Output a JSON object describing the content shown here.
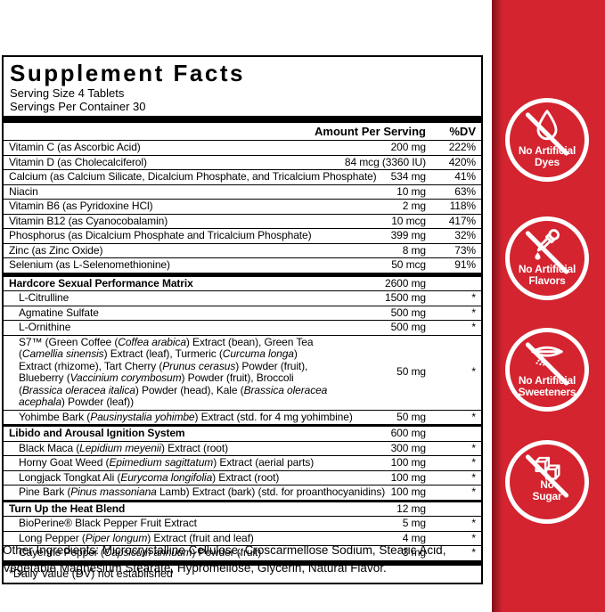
{
  "colors": {
    "band_red": "#d32430",
    "band_red_edge": "#7e161c",
    "ink": "#000000",
    "badge_white": "#ffffff"
  },
  "label": {
    "title": "Supplement Facts",
    "serving_size": "Serving Size 4 Tablets",
    "servings_per_container": "Servings Per Container 30",
    "columns": {
      "amount": "Amount Per Serving",
      "dv": "%DV"
    },
    "rows": [
      {
        "name": [
          {
            "t": "Vitamin C (as Ascorbic Acid)"
          }
        ],
        "amount": "200 mg",
        "dv": "222%"
      },
      {
        "name": [
          {
            "t": "Vitamin D (as Cholecalciferol)"
          }
        ],
        "amount": "84 mcg (3360 IU)",
        "dv": "420%"
      },
      {
        "name": [
          {
            "t": "Calcium (as Calcium Silicate, Dicalcium Phosphate, and Tricalcium Phosphate)"
          }
        ],
        "amount": "534 mg",
        "dv": "41%"
      },
      {
        "name": [
          {
            "t": "Niacin"
          }
        ],
        "amount": "10 mg",
        "dv": "63%"
      },
      {
        "name": [
          {
            "t": "Vitamin B6 (as Pyridoxine HCl)"
          }
        ],
        "amount": "2 mg",
        "dv": "118%"
      },
      {
        "name": [
          {
            "t": "Vitamin B12 (as Cyanocobalamin)"
          }
        ],
        "amount": "10 mcg",
        "dv": "417%"
      },
      {
        "name": [
          {
            "t": "Phosphorus (as Dicalcium Phosphate and Tricalcium Phosphate)"
          }
        ],
        "amount": "399 mg",
        "dv": "32%"
      },
      {
        "name": [
          {
            "t": "Zinc (as Zinc Oxide)"
          }
        ],
        "amount": "8 mg",
        "dv": "73%"
      },
      {
        "name": [
          {
            "t": "Selenium (as L-Selenomethionine)"
          }
        ],
        "amount": "50 mcg",
        "dv": "91%"
      },
      {
        "name": [
          {
            "t": "Hardcore Sexual Performance Matrix"
          }
        ],
        "amount": "2600 mg",
        "dv": "",
        "group": true,
        "sep": "thick"
      },
      {
        "name": [
          {
            "t": "L-Citrulline"
          }
        ],
        "amount": "1500 mg",
        "dv": "*",
        "indent": true
      },
      {
        "name": [
          {
            "t": "Agmatine Sulfate"
          }
        ],
        "amount": "500 mg",
        "dv": "*",
        "indent": true
      },
      {
        "name": [
          {
            "t": "L-Ornithine"
          }
        ],
        "amount": "500 mg",
        "dv": "*",
        "indent": true
      },
      {
        "name": [
          {
            "t": "S7™ (Green Coffee ("
          },
          {
            "t": "Coffea arabica",
            "i": true
          },
          {
            "t": ") Extract (bean), Green Tea ("
          },
          {
            "t": "Camellia sinensis",
            "i": true
          },
          {
            "t": ") Extract (leaf), Turmeric ("
          },
          {
            "t": "Curcuma longa",
            "i": true
          },
          {
            "t": ") Extract (rhizome), Tart Cherry ("
          },
          {
            "t": "Prunus cerasus",
            "i": true
          },
          {
            "t": ") Powder (fruit), Blueberry ("
          },
          {
            "t": "Vaccinium corymbosum",
            "i": true
          },
          {
            "t": ") Powder (fruit), Broccoli ("
          },
          {
            "t": "Brassica oleracea italica",
            "i": true
          },
          {
            "t": ") Powder (head), Kale ("
          },
          {
            "t": "Brassica oleracea acephala",
            "i": true
          },
          {
            "t": ") Powder (leaf))"
          }
        ],
        "amount": "50 mg",
        "dv": "*",
        "indent": true,
        "multiline": true
      },
      {
        "name": [
          {
            "t": "Yohimbe Bark ("
          },
          {
            "t": "Pausinystalia yohimbe",
            "i": true
          },
          {
            "t": ") Extract (std. for 4 mg yohimbine)"
          }
        ],
        "amount": "50 mg",
        "dv": "*",
        "indent": true
      },
      {
        "name": [
          {
            "t": "Libido and Arousal Ignition System"
          }
        ],
        "amount": "600 mg",
        "dv": "",
        "group": true,
        "sep": "medium"
      },
      {
        "name": [
          {
            "t": "Black Maca ("
          },
          {
            "t": "Lepidium meyenii",
            "i": true
          },
          {
            "t": ") Extract (root)"
          }
        ],
        "amount": "300 mg",
        "dv": "*",
        "indent": true
      },
      {
        "name": [
          {
            "t": "Horny Goat Weed ("
          },
          {
            "t": "Epimedium sagittatum",
            "i": true
          },
          {
            "t": ") Extract (aerial parts)"
          }
        ],
        "amount": "100 mg",
        "dv": "*",
        "indent": true
      },
      {
        "name": [
          {
            "t": "Longjack Tongkat Ali ("
          },
          {
            "t": "Eurycoma longifolia",
            "i": true
          },
          {
            "t": ") Extract (root)"
          }
        ],
        "amount": "100 mg",
        "dv": "*",
        "indent": true
      },
      {
        "name": [
          {
            "t": "Pine Bark ("
          },
          {
            "t": "Pinus massoniana",
            "i": true
          },
          {
            "t": " Lamb) Extract (bark) (std. for proanthocyanidins)"
          }
        ],
        "amount": "100 mg",
        "dv": "*",
        "indent": true
      },
      {
        "name": [
          {
            "t": "Turn Up the Heat Blend"
          }
        ],
        "amount": "12 mg",
        "dv": "",
        "group": true,
        "sep": "medium"
      },
      {
        "name": [
          {
            "t": "BioPerine® Black Pepper Fruit Extract"
          }
        ],
        "amount": "5 mg",
        "dv": "*",
        "indent": true
      },
      {
        "name": [
          {
            "t": "Long Pepper ("
          },
          {
            "t": "Piper longum",
            "i": true
          },
          {
            "t": ") Extract (fruit and leaf)"
          }
        ],
        "amount": "4 mg",
        "dv": "*",
        "indent": true
      },
      {
        "name": [
          {
            "t": "Cayenne Pepper ("
          },
          {
            "t": "Capsicum annuum",
            "i": true
          },
          {
            "t": ") Powder (fruit)"
          }
        ],
        "amount": "3 mg",
        "dv": "*",
        "indent": true
      }
    ],
    "footnote": "*Daily Value (DV) not established",
    "other_ingredients": "Other Ingredients: Microcrystalline Cellulose, Croscarmellose Sodium, Stearic Acid, Vegetable Magnesium Stearate, Hypromellose, Glycerin, Natural Flavor."
  },
  "badges": [
    {
      "icon": "droplet-icon",
      "line1": "No Artificial",
      "line2": "Dyes"
    },
    {
      "icon": "dropper-icon",
      "line1": "No Artificial",
      "line2": "Flavors"
    },
    {
      "icon": "sweetener-packet-icon",
      "line1": "No Artificial",
      "line2": "Sweeteners"
    },
    {
      "icon": "sugar-cubes-icon",
      "line1": "No",
      "line2": "Sugar"
    }
  ]
}
